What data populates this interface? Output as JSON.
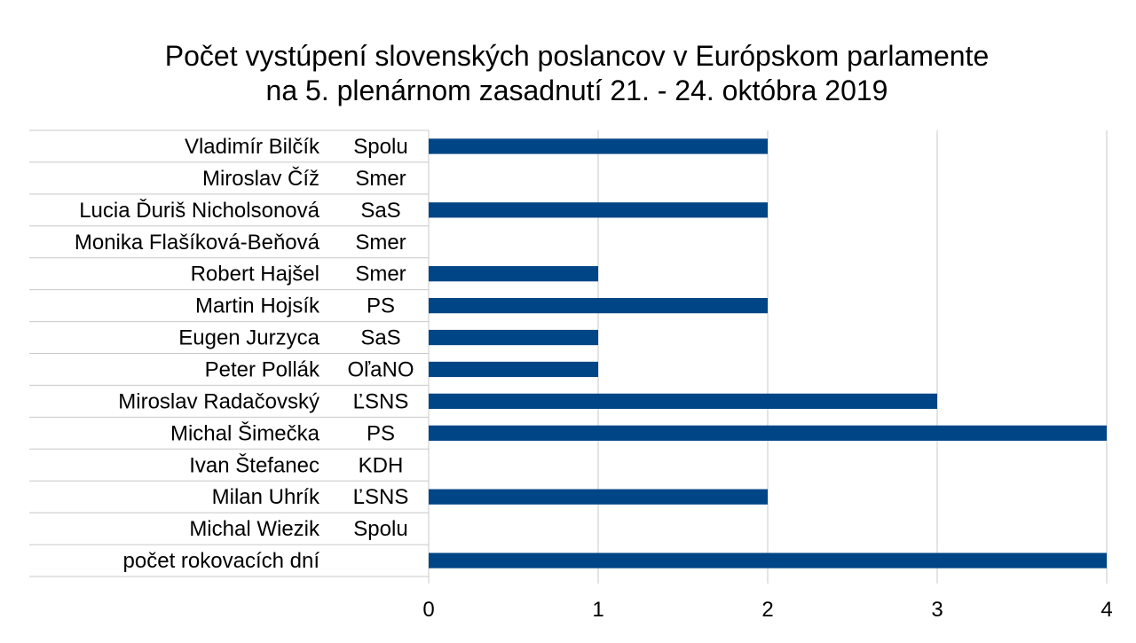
{
  "chart_data": {
    "type": "bar",
    "orientation": "horizontal",
    "title": "Počet vystúpení slovenských poslancov v Európskom parlamente",
    "subtitle": "na 5. plenárnom zasadnutí 21. - 24. októbra 2019",
    "xlabel": "",
    "ylabel": "",
    "xlim": [
      0,
      4
    ],
    "x_ticks": [
      "0",
      "1",
      "2",
      "3",
      "4"
    ],
    "grid": true,
    "bar_color": "#004586",
    "categories": [
      {
        "name": "Vladimír Bilčík",
        "party": "Spolu"
      },
      {
        "name": "Miroslav Číž",
        "party": "Smer"
      },
      {
        "name": "Lucia Ďuriš Nicholsonová",
        "party": "SaS"
      },
      {
        "name": "Monika Flašíková-Beňová",
        "party": "Smer"
      },
      {
        "name": "Robert Hajšel",
        "party": "Smer"
      },
      {
        "name": "Martin Hojsík",
        "party": "PS"
      },
      {
        "name": "Eugen Jurzyca",
        "party": "SaS"
      },
      {
        "name": "Peter Pollák",
        "party": "OľaNO"
      },
      {
        "name": "Miroslav Radačovský",
        "party": "ĽSNS"
      },
      {
        "name": "Michal Šimečka",
        "party": "PS"
      },
      {
        "name": "Ivan Štefanec",
        "party": "KDH"
      },
      {
        "name": "Milan Uhrík",
        "party": "ĽSNS"
      },
      {
        "name": "Michal Wiezik",
        "party": "Spolu"
      },
      {
        "name": "počet rokovacích dní",
        "party": ""
      }
    ],
    "values": [
      2,
      0,
      2,
      0,
      1,
      2,
      1,
      1,
      3,
      4,
      0,
      2,
      0,
      4
    ]
  }
}
